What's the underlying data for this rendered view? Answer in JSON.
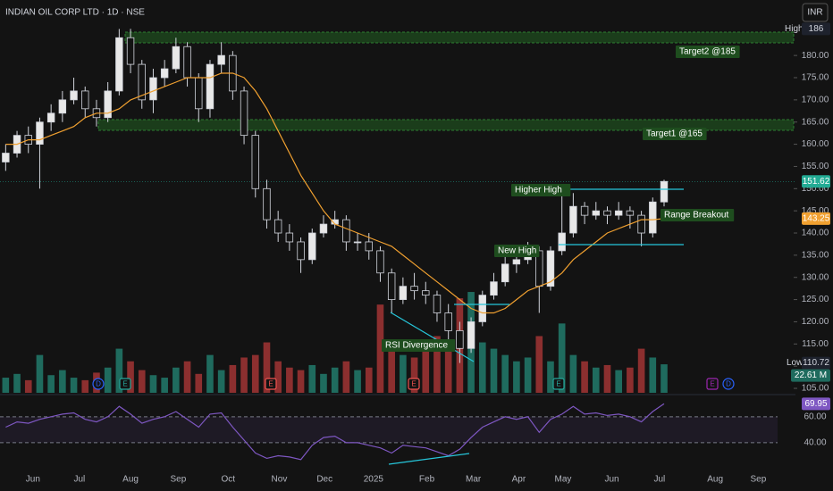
{
  "chart_data": {
    "type": "candlestick",
    "title": "INDIAN OIL CORP LTD · 1D · NSE",
    "currency": "INR",
    "x": [
      0.5,
      1.5,
      2.5,
      3.5,
      4.5,
      5.5,
      6.5,
      7.5,
      8.5,
      9.5,
      10.5,
      11.5,
      12.5,
      13.5,
      14.5,
      15.5,
      16.5,
      17.5,
      18.5,
      19.5,
      20.5,
      21.5,
      22.5,
      23.5,
      24.5,
      25.5,
      26.5,
      27.5,
      28.5,
      29.5,
      30.5,
      31.5,
      32.5,
      33.5,
      34.5,
      35.5,
      36.5,
      37.5,
      38.5,
      39.5,
      40.5,
      41.5,
      42.5,
      43.5,
      44.5,
      45.5,
      46.5,
      47.5,
      48.5,
      49.5,
      50.5,
      51.5,
      52.5,
      53.5,
      54.5,
      55.5,
      56.5,
      57.5,
      58.5
    ],
    "xlim": [
      0,
      68.5
    ],
    "xticks": [
      {
        "value": 2.9,
        "label": "Jun"
      },
      {
        "value": 7.0,
        "label": "Jul"
      },
      {
        "value": 11.5,
        "label": "Aug"
      },
      {
        "value": 15.7,
        "label": "Sep"
      },
      {
        "value": 20.1,
        "label": "Oct"
      },
      {
        "value": 24.6,
        "label": "Nov"
      },
      {
        "value": 28.6,
        "label": "Dec"
      },
      {
        "value": 32.9,
        "label": "2025"
      },
      {
        "value": 37.6,
        "label": "Feb"
      },
      {
        "value": 41.7,
        "label": "Mar"
      },
      {
        "value": 45.7,
        "label": "Apr"
      },
      {
        "value": 49.6,
        "label": "May"
      },
      {
        "value": 53.9,
        "label": "Jun"
      },
      {
        "value": 58.1,
        "label": "Jul"
      },
      {
        "value": 63.0,
        "label": "Aug"
      },
      {
        "value": 66.8,
        "label": "Sep"
      }
    ],
    "open": [
      156,
      158,
      162,
      160,
      165,
      167,
      170,
      172,
      168,
      166,
      172,
      184,
      178,
      170,
      175,
      177,
      182,
      175,
      168,
      178,
      180,
      172,
      162,
      150,
      143,
      140,
      138,
      134,
      140,
      142,
      143,
      138,
      138,
      136,
      131,
      125,
      128,
      127,
      126,
      122,
      118,
      114,
      120,
      126,
      129,
      133,
      134,
      136,
      128,
      136,
      140,
      146,
      144,
      145,
      144,
      145,
      144,
      140,
      147
    ],
    "high": [
      160,
      163,
      164,
      166,
      169,
      172,
      175,
      173,
      170,
      174,
      185.97,
      186,
      179,
      177,
      179,
      184,
      183,
      176,
      179,
      183,
      181,
      173,
      163,
      152,
      145,
      142,
      139,
      141,
      144,
      145,
      144,
      140,
      140,
      137,
      132,
      130,
      131,
      129,
      127,
      124,
      120,
      121,
      127,
      131,
      135,
      136,
      138,
      137,
      137,
      150,
      149,
      147,
      147,
      146,
      147,
      146,
      145,
      148,
      152
    ],
    "low": [
      154,
      157,
      158,
      150,
      163,
      165,
      169,
      166,
      164,
      165,
      171,
      176,
      168,
      167,
      173,
      176,
      173,
      165,
      166,
      176,
      170,
      160,
      148,
      141,
      138,
      136,
      131,
      133,
      139,
      141,
      136,
      136,
      134,
      129,
      122,
      124,
      125,
      124,
      120,
      116,
      110.72,
      113,
      119,
      125,
      128,
      131,
      133,
      122,
      127,
      135,
      139,
      142,
      143,
      142,
      143,
      141,
      137,
      139,
      146
    ],
    "close": [
      158,
      162,
      160,
      165,
      167,
      170,
      172,
      168,
      166,
      172,
      184,
      178,
      170,
      175,
      177,
      182,
      175,
      168,
      178,
      180,
      172,
      162,
      150,
      143,
      140,
      138,
      134,
      140,
      142,
      143,
      138,
      138,
      136,
      131,
      125,
      128,
      127,
      126,
      122,
      118,
      114,
      120,
      126,
      129,
      133,
      134,
      136,
      128,
      136,
      140,
      146,
      144,
      145,
      144,
      145,
      144,
      140,
      147,
      151.62
    ],
    "up_color": "#e8e8e8",
    "down_color": "#131313",
    "ylim": [
      104,
      192.5
    ],
    "yticks": [
      {
        "value": 105,
        "label": "105.00"
      },
      {
        "value": 110,
        "label": "110.00"
      },
      {
        "value": 115,
        "label": "115.00"
      },
      {
        "value": 120,
        "label": "120.00"
      },
      {
        "value": 125,
        "label": "125.00"
      },
      {
        "value": 130,
        "label": "130.00"
      },
      {
        "value": 135,
        "label": "135.00"
      },
      {
        "value": 140,
        "label": "140.00"
      },
      {
        "value": 145,
        "label": "145.00"
      },
      {
        "value": 150,
        "label": "150.00"
      },
      {
        "value": 155,
        "label": "155.00"
      },
      {
        "value": 160,
        "label": "160.00"
      },
      {
        "value": 165,
        "label": "165.00"
      },
      {
        "value": 170,
        "label": "170.00"
      },
      {
        "value": 175,
        "label": "175.00"
      },
      {
        "value": 180,
        "label": "180.00"
      }
    ],
    "extremes": {
      "high_label": "High",
      "low_label": "Low"
    },
    "ma": {
      "color": "#f0a030",
      "values": [
        160,
        160,
        161,
        161,
        162,
        163,
        164,
        166,
        167,
        167,
        168,
        170,
        171,
        172,
        173,
        174,
        175,
        175,
        175,
        176,
        176,
        175,
        172,
        168,
        163,
        158,
        153,
        149,
        145,
        142,
        141,
        140,
        139,
        138,
        137,
        135,
        133,
        131,
        129,
        127,
        125,
        123,
        122,
        122,
        123,
        125,
        127,
        128,
        129,
        131,
        134,
        136,
        138,
        140,
        141,
        142,
        143,
        143,
        143.25
      ]
    },
    "volume": {
      "ylim": [
        0,
        85
      ],
      "up_color": "#1f6b5e",
      "down_color": "#8c2f2f",
      "values": [
        12,
        15,
        10,
        30,
        14,
        18,
        12,
        10,
        16,
        20,
        35,
        25,
        18,
        14,
        12,
        20,
        25,
        15,
        30,
        18,
        22,
        28,
        30,
        40,
        25,
        20,
        18,
        22,
        15,
        20,
        25,
        18,
        20,
        70,
        35,
        30,
        28,
        40,
        45,
        35,
        75,
        80,
        40,
        35,
        30,
        25,
        28,
        45,
        25,
        55,
        30,
        25,
        20,
        22,
        18,
        20,
        35,
        28,
        22.61
      ],
      "last_value_label": "22.61 M"
    },
    "rsi": {
      "color": "#7e57c2",
      "ylim": [
        20,
        75
      ],
      "yticks": [
        {
          "value": 60,
          "label": "60.00"
        },
        {
          "value": 40,
          "label": "40.00"
        }
      ],
      "values": [
        52,
        56,
        55,
        58,
        60,
        62,
        63,
        58,
        56,
        60,
        68,
        62,
        55,
        58,
        60,
        64,
        58,
        52,
        62,
        63,
        52,
        42,
        32,
        28,
        30,
        29,
        27,
        38,
        44,
        45,
        40,
        40,
        38,
        36,
        32,
        38,
        37,
        36,
        33,
        30,
        35,
        44,
        52,
        56,
        60,
        58,
        60,
        48,
        58,
        62,
        68,
        62,
        63,
        61,
        62,
        60,
        56,
        64,
        69.95
      ]
    },
    "annotations": [
      "Target2 @185",
      "Target1 @165",
      "Higher High",
      "Range Breakout",
      "New High",
      "RSI Divergence"
    ],
    "events": [
      "D",
      "E",
      "E",
      "E",
      "E",
      "E",
      "D"
    ]
  }
}
